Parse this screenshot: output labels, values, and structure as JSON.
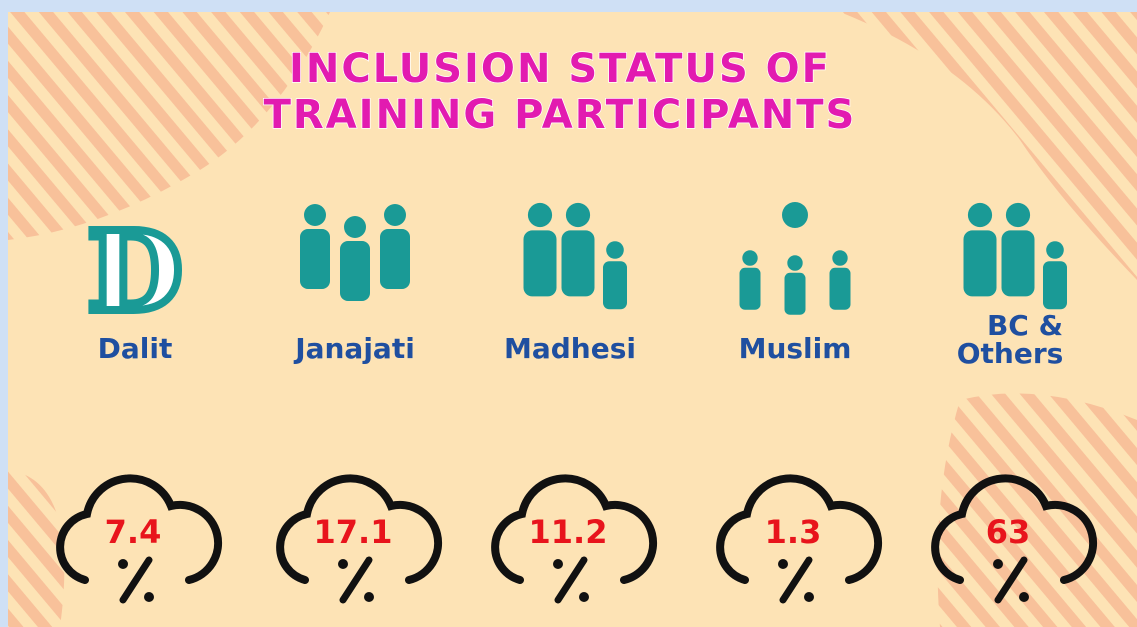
{
  "title": [
    "INCLUSION STATUS OF",
    "TRAINING PARTICIPANTS"
  ],
  "groups": [
    {
      "label": "Dalit",
      "value": "7.4"
    },
    {
      "label": "Janajati",
      "value": "17.1"
    },
    {
      "label": "Madhesi",
      "value": "11.2"
    },
    {
      "label": "Muslim",
      "value": "1.3"
    },
    {
      "label": "BC &\nOthers",
      "value": "63"
    }
  ]
}
